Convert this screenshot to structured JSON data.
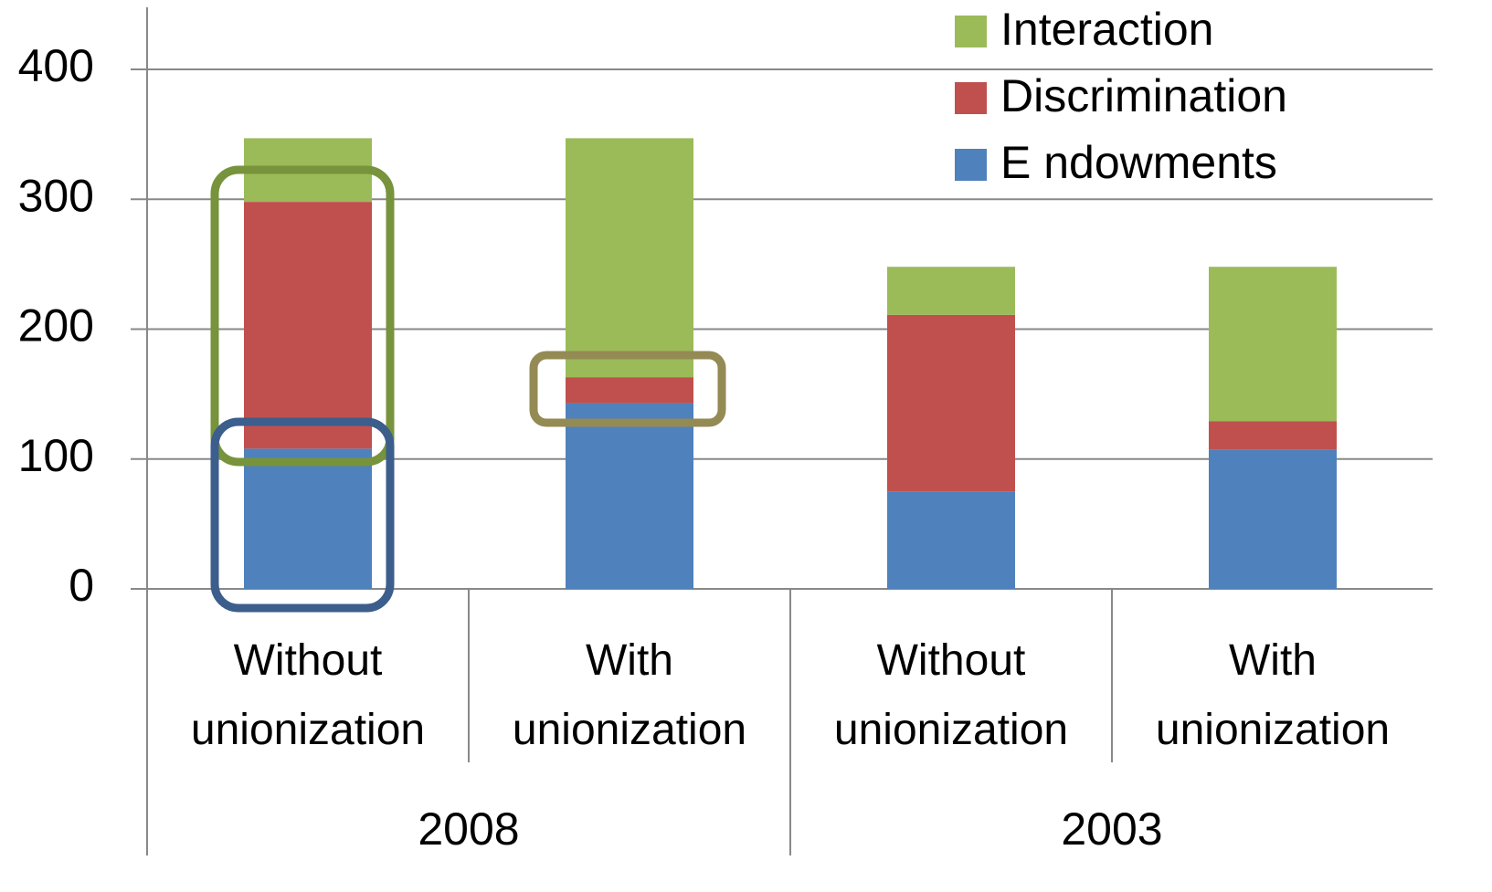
{
  "chart_data": {
    "type": "stacked-bar",
    "categories": [
      "Without unionization",
      "With unionization",
      "Without unionization",
      "With unionization"
    ],
    "groups": [
      "2008",
      "2003"
    ],
    "series": [
      {
        "name": "E ndowments",
        "color": "#4f81bd",
        "values": [
          108,
          143,
          75,
          107
        ]
      },
      {
        "name": "Discrimination",
        "color": "#c0504d",
        "values": [
          190,
          20,
          136,
          22
        ]
      },
      {
        "name": "Interaction",
        "color": "#9bbb59",
        "values": [
          49,
          184,
          37,
          119
        ]
      }
    ],
    "ylim": [
      0,
      400
    ],
    "yticks": [
      0,
      100,
      200,
      300,
      400
    ],
    "grid": true,
    "legend": "top-right"
  }
}
